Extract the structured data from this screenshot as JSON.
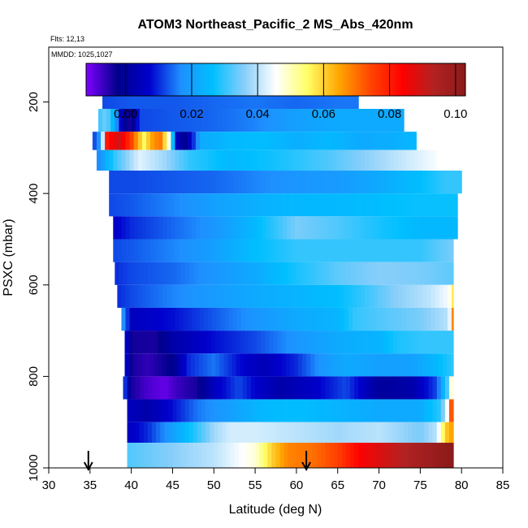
{
  "chart_data": {
    "type": "heatmap",
    "title": "ATOM3 Northeast_Pacific_2 MS_Abs_420nm",
    "flts_text": "Flts: 12,13",
    "mmdd_text": "MMDD: 1025,1027",
    "xlabel": "Latitude (deg N)",
    "ylabel": "PSXC (mbar)",
    "xlim": [
      30,
      85
    ],
    "ylim": [
      1000,
      80
    ],
    "y_reversed": true,
    "grid": false,
    "x_ticks": [
      30,
      35,
      40,
      45,
      50,
      55,
      60,
      65,
      70,
      75,
      80,
      85
    ],
    "y_ticks": [
      200,
      400,
      600,
      800,
      1000
    ],
    "colorbar": {
      "range": [
        -0.012,
        0.103
      ],
      "ticks": [
        0.0,
        0.02,
        0.04,
        0.06,
        0.08,
        0.1
      ],
      "tick_labels": [
        "0.00",
        "0.02",
        "0.04",
        "0.06",
        "0.08",
        "0.10"
      ],
      "colors": [
        "#7f00ff",
        "#00008b",
        "#0000cd",
        "#1e90ff",
        "#00bfff",
        "#87cefa",
        "#ffffff",
        "#ffff66",
        "#ffa500",
        "#ff4500",
        "#ff0000",
        "#b22222",
        "#8b1a1a"
      ]
    },
    "arrows_lat": [
      34.8,
      61.2
    ],
    "layers": [
      {
        "p_top": 170,
        "p_bot": 215,
        "lat_min": 36.5,
        "lat_max": 67.5,
        "values": [
          [
            36.5,
            0.012
          ],
          [
            40,
            0.013
          ],
          [
            45,
            0.013
          ],
          [
            50,
            0.014
          ],
          [
            55,
            0.015
          ],
          [
            60,
            0.014
          ],
          [
            65,
            0.015
          ],
          [
            67.5,
            0.015
          ]
        ]
      },
      {
        "p_top": 215,
        "p_bot": 265,
        "lat_min": 36.0,
        "lat_max": 73.0,
        "values": [
          [
            36,
            0.03
          ],
          [
            37,
            0.035
          ],
          [
            38,
            0.022
          ],
          [
            39,
            0.0
          ],
          [
            40,
            -0.005
          ],
          [
            41,
            0.012
          ],
          [
            45,
            0.013
          ],
          [
            50,
            0.014
          ],
          [
            55,
            0.016
          ],
          [
            60,
            0.02
          ],
          [
            65,
            0.022
          ],
          [
            70,
            0.022
          ],
          [
            73,
            0.022
          ]
        ]
      },
      {
        "p_top": 265,
        "p_bot": 305,
        "lat_min": 35.3,
        "lat_max": 74.5,
        "values": [
          [
            35.3,
            0.01
          ],
          [
            36.3,
            0.02
          ],
          [
            37,
            0.08
          ],
          [
            38.5,
            0.09
          ],
          [
            40,
            0.075
          ],
          [
            41.5,
            0.055
          ],
          [
            42.5,
            0.065
          ],
          [
            43.5,
            0.07
          ],
          [
            44.5,
            0.05
          ],
          [
            45.5,
            0.005
          ],
          [
            46.5,
            -0.002
          ],
          [
            47.5,
            0.01
          ],
          [
            48.5,
            0.022
          ],
          [
            52,
            0.025
          ],
          [
            56,
            0.026
          ],
          [
            60,
            0.023
          ],
          [
            64,
            0.025
          ],
          [
            68,
            0.022
          ],
          [
            72,
            0.023
          ],
          [
            74.5,
            0.025
          ]
        ]
      },
      {
        "p_top": 305,
        "p_bot": 350,
        "lat_min": 35.8,
        "lat_max": 77.0,
        "values": [
          [
            35.8,
            0.015
          ],
          [
            38,
            0.03
          ],
          [
            41,
            0.043
          ],
          [
            44,
            0.038
          ],
          [
            47,
            0.03
          ],
          [
            52,
            0.025
          ],
          [
            58,
            0.028
          ],
          [
            64,
            0.032
          ],
          [
            70,
            0.038
          ],
          [
            74,
            0.042
          ],
          [
            77,
            0.045
          ]
        ]
      },
      {
        "p_top": 350,
        "p_bot": 400,
        "lat_min": 37.3,
        "lat_max": 80.0,
        "values": [
          [
            37.3,
            0.012
          ],
          [
            40,
            0.012
          ],
          [
            45,
            0.013
          ],
          [
            50,
            0.014
          ],
          [
            55,
            0.016
          ],
          [
            60,
            0.018
          ],
          [
            65,
            0.019
          ],
          [
            70,
            0.022
          ],
          [
            75,
            0.026
          ],
          [
            78,
            0.03
          ],
          [
            80,
            0.03
          ]
        ]
      },
      {
        "p_top": 400,
        "p_bot": 450,
        "lat_min": 37.3,
        "lat_max": 79.5,
        "values": [
          [
            37.3,
            0.012
          ],
          [
            40,
            0.013
          ],
          [
            45,
            0.016
          ],
          [
            50,
            0.02
          ],
          [
            55,
            0.023
          ],
          [
            60,
            0.025
          ],
          [
            65,
            0.025
          ],
          [
            70,
            0.026
          ],
          [
            75,
            0.027
          ],
          [
            79.5,
            0.027
          ]
        ]
      },
      {
        "p_top": 450,
        "p_bot": 500,
        "lat_min": 37.8,
        "lat_max": 79.5,
        "values": [
          [
            37.8,
            0.006
          ],
          [
            40,
            0.01
          ],
          [
            45,
            0.014
          ],
          [
            50,
            0.018
          ],
          [
            55,
            0.025
          ],
          [
            60,
            0.035
          ],
          [
            65,
            0.032
          ],
          [
            70,
            0.028
          ],
          [
            75,
            0.025
          ],
          [
            79.5,
            0.025
          ]
        ]
      },
      {
        "p_top": 500,
        "p_bot": 550,
        "lat_min": 37.8,
        "lat_max": 79.0,
        "values": [
          [
            37.8,
            0.012
          ],
          [
            40,
            0.013
          ],
          [
            45,
            0.016
          ],
          [
            50,
            0.02
          ],
          [
            55,
            0.026
          ],
          [
            60,
            0.03
          ],
          [
            65,
            0.03
          ],
          [
            70,
            0.03
          ],
          [
            75,
            0.03
          ],
          [
            79,
            0.035
          ]
        ]
      },
      {
        "p_top": 550,
        "p_bot": 600,
        "lat_min": 38.0,
        "lat_max": 79.0,
        "values": [
          [
            38,
            0.01
          ],
          [
            40,
            0.012
          ],
          [
            45,
            0.014
          ],
          [
            50,
            0.018
          ],
          [
            55,
            0.022
          ],
          [
            60,
            0.028
          ],
          [
            65,
            0.033
          ],
          [
            70,
            0.036
          ],
          [
            75,
            0.035
          ],
          [
            79,
            0.033
          ]
        ]
      },
      {
        "p_top": 600,
        "p_bot": 650,
        "lat_min": 38.3,
        "lat_max": 79.0,
        "values": [
          [
            38.3,
            0.01
          ],
          [
            40,
            0.012
          ],
          [
            45,
            0.016
          ],
          [
            50,
            0.019
          ],
          [
            55,
            0.022
          ],
          [
            60,
            0.024
          ],
          [
            65,
            0.026
          ],
          [
            68,
            0.03
          ],
          [
            72,
            0.036
          ],
          [
            76,
            0.04
          ],
          [
            78.5,
            0.045
          ],
          [
            79,
            0.06
          ]
        ]
      },
      {
        "p_top": 650,
        "p_bot": 700,
        "lat_min": 38.8,
        "lat_max": 79.0,
        "values": [
          [
            38.8,
            0.02
          ],
          [
            40,
            0.005
          ],
          [
            45,
            0.008
          ],
          [
            50,
            0.013
          ],
          [
            55,
            0.018
          ],
          [
            60,
            0.022
          ],
          [
            65,
            0.024
          ],
          [
            67,
            0.03
          ],
          [
            70,
            0.032
          ],
          [
            75,
            0.035
          ],
          [
            78.5,
            0.04
          ],
          [
            79,
            0.075
          ]
        ]
      },
      {
        "p_top": 700,
        "p_bot": 750,
        "lat_min": 39.2,
        "lat_max": 79.0,
        "values": [
          [
            39.2,
            0.01
          ],
          [
            40,
            -0.004
          ],
          [
            43,
            -0.004
          ],
          [
            45,
            0.002
          ],
          [
            50,
            0.008
          ],
          [
            55,
            0.012
          ],
          [
            60,
            0.018
          ],
          [
            65,
            0.022
          ],
          [
            70,
            0.024
          ],
          [
            72,
            0.028
          ],
          [
            75,
            0.03
          ],
          [
            78,
            0.03
          ],
          [
            79,
            0.03
          ]
        ]
      },
      {
        "p_top": 750,
        "p_bot": 800,
        "lat_min": 39.2,
        "lat_max": 79.0,
        "values": [
          [
            39.2,
            0.01
          ],
          [
            40,
            -0.004
          ],
          [
            42,
            -0.006
          ],
          [
            45,
            -0.002
          ],
          [
            47,
            0.01
          ],
          [
            50,
            0.015
          ],
          [
            53,
            0.008
          ],
          [
            56,
            0.004
          ],
          [
            60,
            0.01
          ],
          [
            63,
            0.018
          ],
          [
            66,
            0.022
          ],
          [
            70,
            0.02
          ],
          [
            74,
            0.02
          ],
          [
            77,
            0.025
          ],
          [
            79,
            0.03
          ]
        ]
      },
      {
        "p_top": 800,
        "p_bot": 850,
        "lat_min": 39.0,
        "lat_max": 79.0,
        "values": [
          [
            39,
            0.015
          ],
          [
            40,
            -0.004
          ],
          [
            42,
            -0.008
          ],
          [
            44,
            -0.01
          ],
          [
            46,
            -0.006
          ],
          [
            48,
            -0.004
          ],
          [
            50,
            0.005
          ],
          [
            53,
            0.012
          ],
          [
            55,
            0.007
          ],
          [
            58,
            0.002
          ],
          [
            62,
            0.006
          ],
          [
            66,
            0.012
          ],
          [
            70,
            0.0
          ],
          [
            74,
            0.002
          ],
          [
            77,
            0.012
          ],
          [
            78.5,
            0.035
          ],
          [
            79,
            0.06
          ]
        ]
      },
      {
        "p_top": 850,
        "p_bot": 900,
        "lat_min": 39.5,
        "lat_max": 79.0,
        "values": [
          [
            39.5,
            0.005
          ],
          [
            42,
            0.002
          ],
          [
            45,
            0.008
          ],
          [
            48,
            0.015
          ],
          [
            52,
            0.02
          ],
          [
            56,
            0.025
          ],
          [
            60,
            0.026
          ],
          [
            65,
            0.024
          ],
          [
            70,
            0.022
          ],
          [
            75,
            0.022
          ],
          [
            77.5,
            0.03
          ],
          [
            78.5,
            0.05
          ],
          [
            79,
            0.095
          ]
        ]
      },
      {
        "p_top": 900,
        "p_bot": 945,
        "lat_min": 39.5,
        "lat_max": 79.0,
        "values": [
          [
            39.5,
            0.005
          ],
          [
            42,
            0.01
          ],
          [
            45,
            0.02
          ],
          [
            48,
            0.03
          ],
          [
            50,
            0.038
          ],
          [
            52,
            0.042
          ],
          [
            55,
            0.042
          ],
          [
            60,
            0.04
          ],
          [
            65,
            0.038
          ],
          [
            70,
            0.04
          ],
          [
            75,
            0.035
          ],
          [
            77,
            0.04
          ],
          [
            78,
            0.06
          ],
          [
            78.8,
            0.065
          ],
          [
            79,
            0.1
          ]
        ]
      },
      {
        "p_top": 945,
        "p_bot": 1000,
        "lat_min": 39.5,
        "lat_max": 79.0,
        "values": [
          [
            39.5,
            0.032
          ],
          [
            45,
            0.036
          ],
          [
            50,
            0.04
          ],
          [
            55,
            0.048
          ],
          [
            57,
            0.06
          ],
          [
            59,
            0.068
          ],
          [
            62,
            0.07
          ],
          [
            65,
            0.075
          ],
          [
            68,
            0.085
          ],
          [
            71,
            0.09
          ],
          [
            74,
            0.095
          ],
          [
            77,
            0.1
          ],
          [
            79,
            0.103
          ]
        ]
      }
    ]
  }
}
